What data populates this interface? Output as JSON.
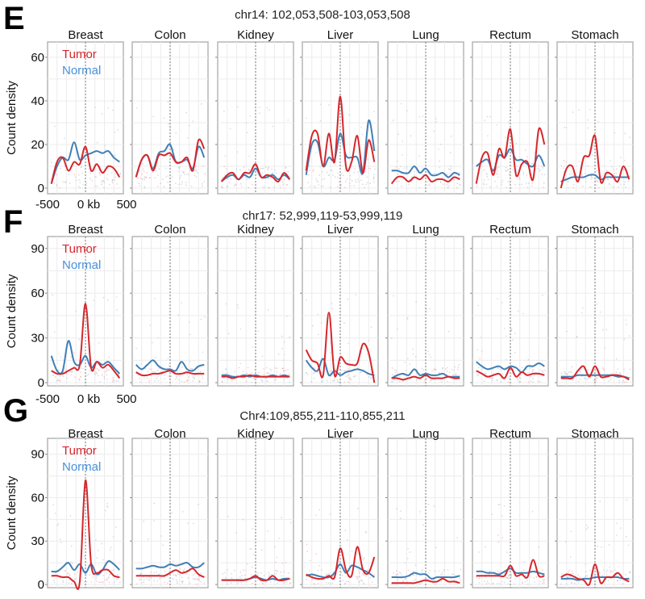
{
  "y_axis_label": "Count density",
  "legend": {
    "tumor": "Tumor",
    "normal": "Normal"
  },
  "colors": {
    "tumor": "#d7262b",
    "normal": "#3f7fb6"
  },
  "x_tick_labels": [
    "-500",
    "0 kb",
    "500"
  ],
  "chart_data": [
    {
      "type": "line",
      "panel_label": "E",
      "title": "chr14: 102,053,508-103,053,508",
      "ylim": [
        0,
        67
      ],
      "y_ticks": [
        0,
        20,
        40,
        60
      ],
      "xlim": [
        -500,
        500
      ],
      "x": [
        -450,
        -375,
        -300,
        -225,
        -150,
        -75,
        0,
        75,
        150,
        225,
        300,
        375,
        450
      ],
      "facets": [
        {
          "name": "Breast",
          "tumor": [
            2,
            12,
            14,
            8,
            12,
            11,
            19,
            8,
            11,
            7,
            10,
            9,
            5
          ],
          "normal": [
            2,
            10,
            14,
            13,
            21,
            13,
            15,
            16,
            17,
            16,
            17,
            14,
            12
          ]
        },
        {
          "name": "Colon",
          "tumor": [
            5,
            13,
            15,
            8,
            15,
            15,
            16,
            12,
            12,
            14,
            8,
            22,
            18
          ],
          "normal": [
            5,
            13,
            15,
            9,
            16,
            17,
            20,
            12,
            12,
            13,
            9,
            19,
            14
          ]
        },
        {
          "name": "Kidney",
          "tumor": [
            3,
            6,
            7,
            4,
            7,
            7,
            11,
            5,
            6,
            5,
            3,
            7,
            4
          ],
          "normal": [
            3,
            5,
            6,
            4,
            6,
            5,
            9,
            5,
            5,
            6,
            4,
            6,
            4
          ]
        },
        {
          "name": "Liver",
          "tumor": [
            8,
            24,
            25,
            10,
            25,
            12,
            42,
            10,
            12,
            24,
            7,
            22,
            12
          ],
          "normal": [
            6,
            20,
            21,
            10,
            14,
            13,
            25,
            15,
            14,
            14,
            7,
            31,
            17
          ]
        },
        {
          "name": "Lung",
          "tumor": [
            2,
            5,
            5,
            3,
            5,
            4,
            6,
            3,
            4,
            4,
            3,
            5,
            4
          ],
          "normal": [
            8,
            8,
            7,
            7,
            10,
            7,
            9,
            6,
            6,
            7,
            5,
            7,
            6
          ]
        },
        {
          "name": "Rectum",
          "tumor": [
            2,
            14,
            16,
            6,
            18,
            14,
            27,
            6,
            11,
            12,
            4,
            27,
            20
          ],
          "normal": [
            10,
            12,
            13,
            8,
            15,
            14,
            18,
            13,
            13,
            11,
            10,
            15,
            10
          ]
        },
        {
          "name": "Stomach",
          "tumor": [
            0,
            9,
            10,
            3,
            14,
            15,
            24,
            3,
            7,
            6,
            3,
            10,
            4
          ],
          "normal": [
            3,
            4,
            5,
            5,
            5,
            6,
            6,
            4,
            5,
            5,
            5,
            5,
            5
          ]
        }
      ]
    },
    {
      "type": "line",
      "panel_label": "F",
      "title": "chr17: 52,999,119-53,999,119",
      "ylim": [
        0,
        98
      ],
      "y_ticks": [
        0,
        30,
        60,
        90
      ],
      "xlim": [
        -500,
        500
      ],
      "x": [
        -450,
        -375,
        -300,
        -225,
        -150,
        -75,
        0,
        75,
        150,
        225,
        300,
        375,
        450
      ],
      "facets": [
        {
          "name": "Breast",
          "tumor": [
            8,
            6,
            6,
            8,
            10,
            12,
            53,
            10,
            14,
            10,
            12,
            8,
            3
          ],
          "normal": [
            18,
            8,
            8,
            28,
            14,
            12,
            18,
            10,
            14,
            12,
            14,
            10,
            6
          ]
        },
        {
          "name": "Colon",
          "tumor": [
            7,
            5,
            5,
            6,
            6,
            7,
            8,
            6,
            6,
            7,
            6,
            6,
            6
          ],
          "normal": [
            12,
            9,
            12,
            15,
            11,
            9,
            9,
            8,
            14,
            9,
            8,
            11,
            12
          ]
        },
        {
          "name": "Kidney",
          "tumor": [
            4,
            4,
            3,
            4,
            4,
            5,
            4,
            4,
            4,
            4,
            4,
            4,
            4
          ],
          "normal": [
            5,
            5,
            4,
            4,
            5,
            4,
            5,
            4,
            4,
            5,
            4,
            5,
            4
          ]
        },
        {
          "name": "Liver",
          "tumor": [
            22,
            15,
            13,
            5,
            47,
            5,
            17,
            13,
            12,
            13,
            26,
            20,
            0
          ],
          "normal": [
            15,
            10,
            8,
            16,
            5,
            8,
            5,
            7,
            8,
            9,
            8,
            6,
            5
          ]
        },
        {
          "name": "Lung",
          "tumor": [
            3,
            3,
            2,
            3,
            4,
            3,
            5,
            3,
            3,
            3,
            4,
            3,
            3
          ],
          "normal": [
            3,
            5,
            6,
            5,
            9,
            5,
            6,
            5,
            5,
            6,
            4,
            4,
            4
          ]
        },
        {
          "name": "Rectum",
          "tumor": [
            8,
            6,
            4,
            5,
            6,
            3,
            10,
            4,
            7,
            5,
            6,
            6,
            5
          ],
          "normal": [
            14,
            11,
            9,
            10,
            11,
            9,
            11,
            10,
            7,
            11,
            11,
            13,
            11
          ]
        },
        {
          "name": "Stomach",
          "tumor": [
            3,
            3,
            3,
            8,
            11,
            4,
            11,
            4,
            4,
            5,
            5,
            4,
            2
          ],
          "normal": [
            4,
            4,
            4,
            5,
            5,
            5,
            5,
            5,
            5,
            5,
            4,
            4,
            3
          ]
        }
      ]
    },
    {
      "type": "line",
      "panel_label": "G",
      "title": "Chr4:109,855,211-110,855,211",
      "ylim": [
        0,
        101
      ],
      "y_ticks": [
        0,
        30,
        60,
        90
      ],
      "xlim": [
        -500,
        500
      ],
      "x": [
        -450,
        -375,
        -300,
        -225,
        -150,
        -75,
        0,
        75,
        150,
        225,
        300,
        375,
        450
      ],
      "facets": [
        {
          "name": "Breast",
          "tumor": [
            6,
            6,
            5,
            5,
            2,
            2,
            72,
            14,
            8,
            10,
            10,
            6,
            5
          ],
          "normal": [
            9,
            9,
            12,
            15,
            10,
            14,
            8,
            14,
            7,
            10,
            16,
            14,
            10
          ]
        },
        {
          "name": "Colon",
          "tumor": [
            6,
            6,
            6,
            6,
            6,
            6,
            8,
            10,
            8,
            9,
            11,
            7,
            5
          ],
          "normal": [
            11,
            11,
            12,
            13,
            12,
            12,
            14,
            13,
            14,
            15,
            12,
            12,
            15
          ]
        },
        {
          "name": "Kidney",
          "tumor": [
            3,
            3,
            3,
            3,
            3,
            4,
            6,
            3,
            3,
            6,
            3,
            3,
            4
          ],
          "normal": [
            3,
            3,
            3,
            3,
            3,
            4,
            5,
            4,
            3,
            4,
            3,
            4,
            4
          ]
        },
        {
          "name": "Liver",
          "tumor": [
            7,
            5,
            4,
            4,
            6,
            5,
            25,
            10,
            6,
            26,
            10,
            8,
            19
          ],
          "normal": [
            6,
            7,
            6,
            5,
            5,
            8,
            14,
            8,
            13,
            12,
            10,
            8,
            5
          ]
        },
        {
          "name": "Lung",
          "tumor": [
            1,
            1,
            1,
            1,
            1,
            2,
            3,
            2,
            2,
            4,
            2,
            2,
            1
          ],
          "normal": [
            5,
            5,
            5,
            6,
            8,
            7,
            7,
            4,
            5,
            5,
            5,
            5,
            6
          ]
        },
        {
          "name": "Rectum",
          "tumor": [
            6,
            6,
            6,
            6,
            6,
            6,
            13,
            6,
            7,
            5,
            17,
            6,
            6
          ],
          "normal": [
            9,
            9,
            8,
            8,
            7,
            9,
            11,
            8,
            8,
            8,
            9,
            8,
            7
          ]
        },
        {
          "name": "Stomach",
          "tumor": [
            5,
            7,
            6,
            4,
            3,
            0,
            14,
            1,
            5,
            5,
            8,
            4,
            2
          ],
          "normal": [
            4,
            4,
            4,
            3,
            4,
            4,
            5,
            5,
            5,
            5,
            5,
            4,
            4
          ]
        }
      ]
    }
  ]
}
